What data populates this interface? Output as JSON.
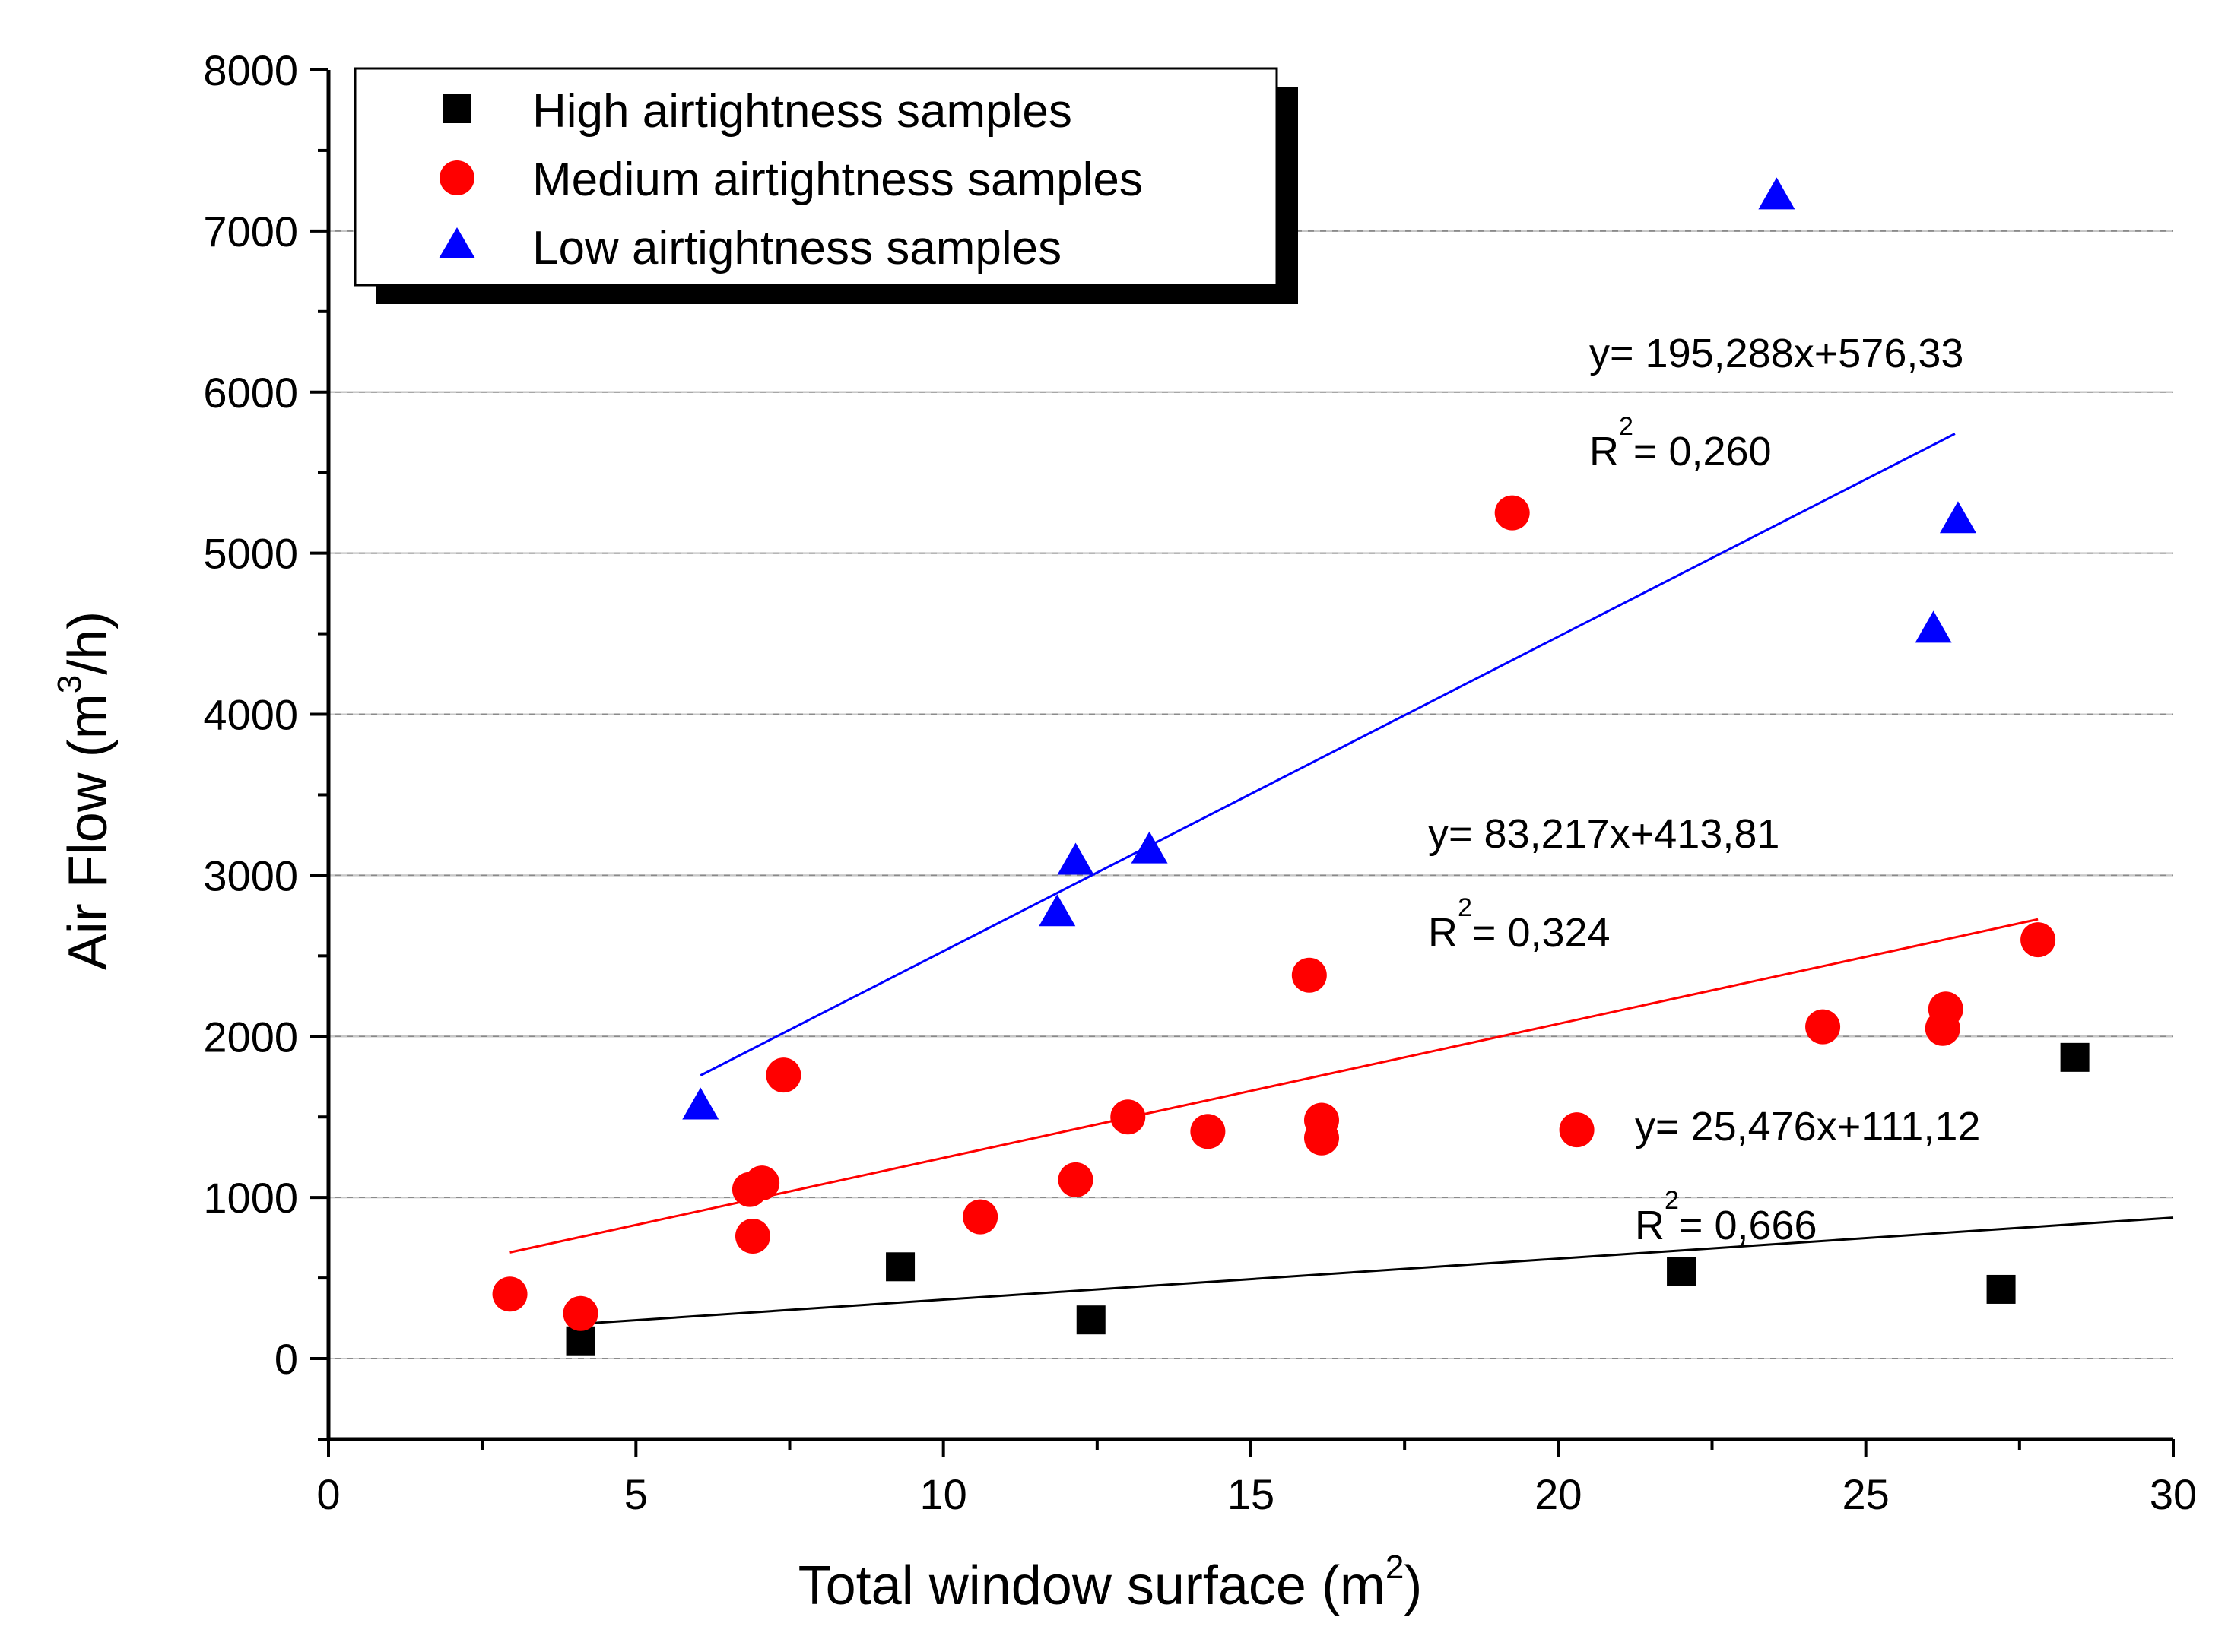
{
  "chart_data": {
    "type": "scatter",
    "xlabel": "Total window surface (m",
    "xlabel_sup": "2",
    "xlabel_end": ")",
    "ylabel": "Air Flow (m",
    "ylabel_sup": "3",
    "ylabel_end": "/h)",
    "xlim": [
      0,
      30
    ],
    "ylim": [
      -500,
      8000
    ],
    "x_ticks": [
      0,
      5,
      10,
      15,
      20,
      25,
      30
    ],
    "y_ticks": [
      0,
      1000,
      2000,
      3000,
      4000,
      5000,
      6000,
      7000,
      8000
    ],
    "x_tick_labels": [
      "0",
      "5",
      "10",
      "15",
      "20",
      "25",
      "30"
    ],
    "y_tick_labels": [
      "0",
      "1000",
      "2000",
      "3000",
      "4000",
      "5000",
      "6000",
      "7000",
      "8000"
    ],
    "grid": "horizontal",
    "legend_position": "top-left",
    "series": [
      {
        "name": "High airtightness samples",
        "marker": "square",
        "color": "#000000",
        "x": [
          4.1,
          9.3,
          12.4,
          22.0,
          27.2,
          28.4
        ],
        "y": [
          110,
          570,
          240,
          540,
          430,
          1870
        ],
        "fit": {
          "slope": 25.476,
          "intercept": 111.12,
          "x_range": [
            4.1,
            30.0
          ],
          "color": "#000000",
          "equation": "y= 25,476x+111,12",
          "r2_label": "R",
          "r2_sup": "2",
          "r2_value": "= 0,666"
        }
      },
      {
        "name": "Medium airtightness samples",
        "marker": "circle",
        "color": "#ff0000",
        "x": [
          2.95,
          4.1,
          6.85,
          6.9,
          7.05,
          7.4,
          10.6,
          12.15,
          13.0,
          14.3,
          15.95,
          16.15,
          16.15,
          19.25,
          20.3,
          24.3,
          26.25,
          26.3,
          27.8
        ],
        "y": [
          400,
          280,
          1050,
          760,
          1090,
          1760,
          880,
          1110,
          1500,
          1410,
          2380,
          1480,
          1370,
          5250,
          1420,
          2060,
          2050,
          2170,
          2600
        ],
        "fit": {
          "slope": 83.217,
          "intercept": 413.81,
          "x_range": [
            2.95,
            27.8
          ],
          "color": "#ff0000",
          "equation": "y= 83,217x+413,81",
          "r2_label": "R",
          "r2_sup": "2",
          "r2_value": "= 0,324"
        }
      },
      {
        "name": "Low airtightness samples",
        "marker": "triangle",
        "color": "#0000ff",
        "x": [
          6.05,
          11.85,
          12.15,
          13.35,
          23.55,
          26.1,
          26.5
        ],
        "y": [
          1560,
          2760,
          3080,
          3150,
          7210,
          4520,
          5200
        ],
        "fit": {
          "slope": 195.288,
          "intercept": 576.33,
          "x_range": [
            6.05,
            26.45
          ],
          "color": "#0000ff",
          "equation": "y= 195,288x+576,33",
          "r2_label": "R",
          "r2_sup": "2",
          "r2_value": "= 0,260"
        }
      }
    ]
  }
}
